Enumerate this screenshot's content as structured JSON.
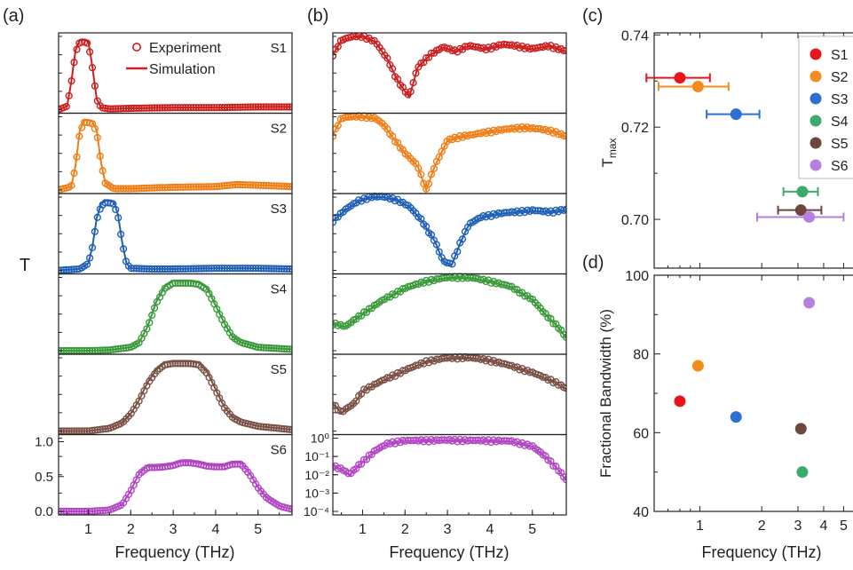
{
  "panel_labels": [
    "(a)",
    "(b)",
    "(c)",
    "(d)"
  ],
  "colors": {
    "S1": "#cc1f1f",
    "S2": "#f07d16",
    "S3": "#1f5fb4",
    "S4": "#3a9a3a",
    "S5": "#7a5044",
    "S6": "#b146c2",
    "scatter_S1": "#e8161b",
    "scatter_S2": "#f58b1f",
    "scatter_S3": "#2d6fd4",
    "scatter_S4": "#3aab6b",
    "scatter_S5": "#6e463e",
    "scatter_S6": "#b77fe0"
  },
  "chart_data": [
    {
      "id": "a",
      "type": "line",
      "title": "",
      "xlabel": "Frequency (THz)",
      "ylabel": "T",
      "xlim": [
        0.3,
        5.8
      ],
      "xticks": [
        "1",
        "2",
        "3",
        "4",
        "5"
      ],
      "yticks_bottom_panel": [
        "0.0",
        "0.5",
        "1.0"
      ],
      "ylim_each": [
        0,
        1
      ],
      "legend": {
        "position": "top-right",
        "entries": [
          "Experiment",
          "Simulation"
        ]
      },
      "series": [
        {
          "name": "S1",
          "x": [
            0.3,
            0.5,
            0.6,
            0.7,
            0.8,
            0.9,
            1.0,
            1.1,
            1.2,
            1.3,
            1.5,
            2.0,
            3.0,
            4.0,
            5.0,
            5.8
          ],
          "values": [
            0.0,
            0.05,
            0.4,
            0.85,
            1.0,
            1.0,
            0.98,
            0.6,
            0.15,
            0.03,
            0.01,
            0.02,
            0.03,
            0.03,
            0.04,
            0.04
          ]
        },
        {
          "name": "S2",
          "x": [
            0.3,
            0.6,
            0.7,
            0.8,
            0.9,
            1.0,
            1.1,
            1.2,
            1.3,
            1.4,
            1.6,
            2.0,
            3.0,
            4.0,
            4.5,
            5.0,
            5.8
          ],
          "values": [
            0.0,
            0.05,
            0.35,
            0.85,
            1.0,
            1.0,
            0.98,
            0.85,
            0.4,
            0.1,
            0.02,
            0.02,
            0.04,
            0.05,
            0.08,
            0.07,
            0.05
          ]
        },
        {
          "name": "S3",
          "x": [
            0.3,
            0.8,
            1.0,
            1.1,
            1.2,
            1.3,
            1.4,
            1.5,
            1.6,
            1.7,
            1.8,
            1.9,
            2.0,
            2.5,
            3.0,
            4.0,
            5.0,
            5.8
          ],
          "values": [
            0.0,
            0.02,
            0.1,
            0.35,
            0.75,
            0.95,
            1.0,
            1.0,
            0.98,
            0.8,
            0.4,
            0.1,
            0.03,
            0.02,
            0.02,
            0.03,
            0.03,
            0.02
          ]
        },
        {
          "name": "S4",
          "x": [
            0.3,
            1.0,
            1.5,
            2.0,
            2.2,
            2.4,
            2.6,
            2.8,
            3.0,
            3.2,
            3.4,
            3.6,
            3.8,
            4.0,
            4.2,
            4.4,
            4.6,
            5.0,
            5.8
          ],
          "values": [
            0.0,
            0.0,
            0.01,
            0.05,
            0.12,
            0.35,
            0.7,
            0.92,
            1.0,
            1.0,
            1.0,
            0.98,
            0.9,
            0.65,
            0.4,
            0.2,
            0.12,
            0.05,
            0.02
          ]
        },
        {
          "name": "S5",
          "x": [
            0.3,
            1.0,
            1.5,
            1.8,
            2.0,
            2.2,
            2.4,
            2.6,
            2.8,
            3.0,
            3.2,
            3.4,
            3.6,
            3.8,
            4.0,
            4.2,
            4.4,
            4.6,
            5.0,
            5.8
          ],
          "values": [
            0.0,
            0.0,
            0.04,
            0.12,
            0.25,
            0.45,
            0.7,
            0.88,
            0.98,
            1.0,
            1.0,
            1.0,
            0.98,
            0.85,
            0.6,
            0.35,
            0.2,
            0.13,
            0.07,
            0.02
          ]
        },
        {
          "name": "S6",
          "x": [
            0.3,
            1.0,
            1.5,
            1.8,
            2.0,
            2.2,
            2.4,
            2.6,
            2.8,
            3.0,
            3.2,
            3.4,
            3.6,
            3.8,
            4.0,
            4.2,
            4.4,
            4.6,
            4.8,
            5.0,
            5.2,
            5.5,
            5.8
          ],
          "values": [
            0.0,
            0.0,
            0.02,
            0.1,
            0.3,
            0.55,
            0.65,
            0.65,
            0.66,
            0.68,
            0.72,
            0.72,
            0.7,
            0.67,
            0.66,
            0.66,
            0.7,
            0.7,
            0.55,
            0.35,
            0.2,
            0.08,
            0.03
          ]
        }
      ]
    },
    {
      "id": "b",
      "type": "line",
      "title": "",
      "xlabel": "Frequency (THz)",
      "ylabel": "",
      "yscale": "log",
      "xlim": [
        0.3,
        5.8
      ],
      "xticks": [
        "1",
        "2",
        "3",
        "4",
        "5"
      ],
      "yticks_bottom_panel": [
        "10⁰",
        "10⁻¹",
        "10⁻²",
        "10⁻³",
        "10⁻⁴"
      ],
      "ylim_each": [
        0.0001,
        1
      ],
      "series": [
        {
          "name": "S1",
          "x": [
            0.3,
            0.5,
            0.8,
            1.0,
            1.3,
            1.6,
            1.8,
            2.0,
            2.1,
            2.3,
            2.6,
            2.9,
            3.2,
            3.5,
            3.9,
            4.3,
            4.6,
            5.0,
            5.4,
            5.8
          ],
          "values": [
            0.1,
            0.6,
            1.0,
            1.0,
            0.5,
            0.05,
            0.005,
            0.001,
            0.0005,
            0.02,
            0.1,
            0.25,
            0.15,
            0.3,
            0.2,
            0.35,
            0.3,
            0.2,
            0.3,
            0.15
          ]
        },
        {
          "name": "S2",
          "x": [
            0.3,
            0.5,
            0.8,
            1.0,
            1.3,
            1.5,
            1.7,
            2.0,
            2.3,
            2.5,
            2.7,
            3.0,
            3.3,
            3.6,
            4.0,
            4.4,
            4.8,
            5.2,
            5.5,
            5.8
          ],
          "values": [
            0.1,
            0.8,
            1.0,
            1.0,
            0.8,
            0.35,
            0.08,
            0.01,
            0.002,
            0.0001,
            0.002,
            0.05,
            0.08,
            0.1,
            0.15,
            0.2,
            0.25,
            0.2,
            0.15,
            0.08
          ]
        },
        {
          "name": "S3",
          "x": [
            0.3,
            0.6,
            0.9,
            1.2,
            1.5,
            1.8,
            2.1,
            2.4,
            2.7,
            2.9,
            3.1,
            3.3,
            3.5,
            3.8,
            4.2,
            4.6,
            5.0,
            5.4,
            5.8
          ],
          "values": [
            0.05,
            0.2,
            0.6,
            1.0,
            1.0,
            0.7,
            0.3,
            0.05,
            0.004,
            0.0003,
            0.0002,
            0.003,
            0.03,
            0.08,
            0.12,
            0.15,
            0.18,
            0.15,
            0.2
          ]
        },
        {
          "name": "S4",
          "x": [
            0.3,
            0.6,
            1.0,
            1.5,
            2.0,
            2.5,
            3.0,
            3.3,
            3.6,
            4.0,
            4.5,
            5.0,
            5.3,
            5.6,
            5.8
          ],
          "values": [
            0.003,
            0.002,
            0.01,
            0.06,
            0.25,
            0.6,
            0.95,
            1.0,
            0.9,
            0.6,
            0.3,
            0.06,
            0.01,
            0.002,
            0.0005
          ]
        },
        {
          "name": "S5",
          "x": [
            0.3,
            0.5,
            0.8,
            1.0,
            1.5,
            2.0,
            2.5,
            3.0,
            3.5,
            4.0,
            4.5,
            5.0,
            5.5,
            5.8
          ],
          "values": [
            0.003,
            0.001,
            0.003,
            0.015,
            0.06,
            0.2,
            0.6,
            0.95,
            1.0,
            0.7,
            0.35,
            0.15,
            0.05,
            0.02
          ]
        },
        {
          "name": "S6",
          "x": [
            0.3,
            0.5,
            0.7,
            1.0,
            1.3,
            1.6,
            2.0,
            2.5,
            3.0,
            3.5,
            4.0,
            4.5,
            5.0,
            5.3,
            5.6,
            5.8
          ],
          "values": [
            0.03,
            0.02,
            0.01,
            0.05,
            0.2,
            0.5,
            0.7,
            0.72,
            0.75,
            0.72,
            0.7,
            0.66,
            0.35,
            0.1,
            0.02,
            0.005
          ]
        }
      ]
    },
    {
      "id": "c",
      "type": "scatter",
      "title": "",
      "xlabel": "",
      "ylabel": "T_max",
      "xscale": "log",
      "ylim": [
        0.69,
        0.74
      ],
      "yticks": [
        "0.70",
        "0.72",
        "0.74"
      ],
      "legend": {
        "position": "top-right",
        "entries": [
          "S1",
          "S2",
          "S3",
          "S4",
          "S5",
          "S6"
        ]
      },
      "points": [
        {
          "name": "S1",
          "x": 0.8,
          "y": 0.7307,
          "xerr": [
            0.55,
            1.12
          ]
        },
        {
          "name": "S2",
          "x": 0.98,
          "y": 0.7288,
          "xerr": [
            0.63,
            1.38
          ]
        },
        {
          "name": "S3",
          "x": 1.5,
          "y": 0.7228,
          "xerr": [
            1.08,
            1.95
          ]
        },
        {
          "name": "S4",
          "x": 3.15,
          "y": 0.706,
          "xerr": [
            2.55,
            3.75
          ]
        },
        {
          "name": "S5",
          "x": 3.1,
          "y": 0.702,
          "xerr": [
            2.4,
            3.9
          ]
        },
        {
          "name": "S6",
          "x": 3.4,
          "y": 0.7005,
          "xerr": [
            1.9,
            5.0
          ]
        }
      ]
    },
    {
      "id": "d",
      "type": "scatter",
      "title": "",
      "xlabel": "Frequency (THz)",
      "ylabel": "Fractional Bandwidth (%)",
      "xscale": "log",
      "ylim": [
        40,
        100
      ],
      "yticks": [
        "40",
        "60",
        "80",
        "100"
      ],
      "xticks": [
        "1",
        "2",
        "3",
        "4",
        "5"
      ],
      "points": [
        {
          "name": "S1",
          "x": 0.8,
          "y": 68
        },
        {
          "name": "S2",
          "x": 0.98,
          "y": 77
        },
        {
          "name": "S3",
          "x": 1.5,
          "y": 64
        },
        {
          "name": "S4",
          "x": 3.15,
          "y": 50
        },
        {
          "name": "S5",
          "x": 3.1,
          "y": 61
        },
        {
          "name": "S6",
          "x": 3.4,
          "y": 93
        }
      ]
    }
  ]
}
